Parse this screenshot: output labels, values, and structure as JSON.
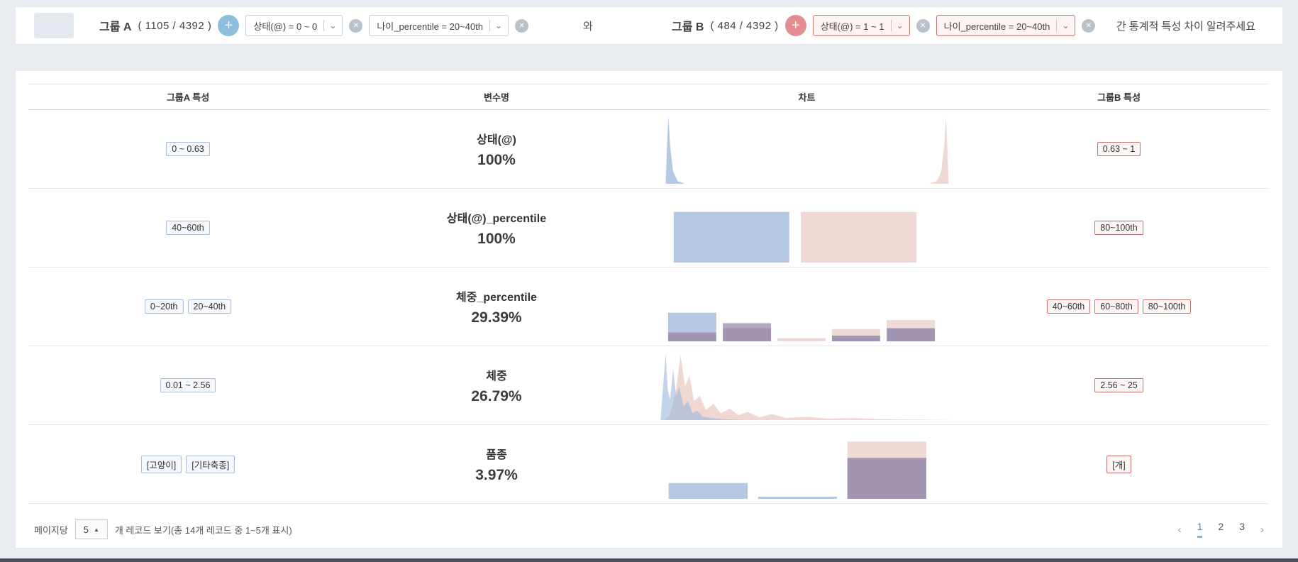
{
  "topbar": {
    "groupA": {
      "label": "그룹 A",
      "count": "( 1105 / 4392 )",
      "filters": [
        {
          "text": "상태(@) = 0 ~ 0"
        },
        {
          "text": "나이_percentile = 20~40th"
        }
      ]
    },
    "connector": "와",
    "groupB": {
      "label": "그룹 B",
      "count": "( 484 / 4392 )",
      "filters": [
        {
          "text": "상태(@) = 1 ~ 1"
        },
        {
          "text": "나이_percentile = 20~40th"
        }
      ]
    },
    "question": "간 통계적 특성 차이 알려주세요"
  },
  "icons": {
    "plus": "+",
    "close": "✕",
    "caret": "⌄",
    "selectArrow": "▲",
    "prev": "‹",
    "next": "›"
  },
  "table": {
    "headers": [
      "그룹A 특성",
      "변수명",
      "차트",
      "그룹B 특성"
    ],
    "rows": [
      {
        "groupA": [
          "0 ~ 0.63"
        ],
        "variable": "상태(@)",
        "percent": "100%",
        "groupB": [
          "0.63 ~ 1"
        ],
        "chart": {
          "type": "area",
          "opacity": 1,
          "series": [
            {
              "c": "blue",
              "pts": [
                [
                  0.025,
                  0
                ],
                [
                  0.03,
                  0.6
                ],
                [
                  0.034,
                  1
                ],
                [
                  0.04,
                  0.55
                ],
                [
                  0.05,
                  0.18
                ],
                [
                  0.065,
                  0.04
                ],
                [
                  0.09,
                  0
                ]
              ]
            },
            {
              "c": "pink",
              "pts": [
                [
                  0.91,
                  0
                ],
                [
                  0.935,
                  0.04
                ],
                [
                  0.95,
                  0.18
                ],
                [
                  0.96,
                  0.55
                ],
                [
                  0.966,
                  1
                ],
                [
                  0.97,
                  0.6
                ],
                [
                  0.975,
                  0
                ]
              ]
            }
          ]
        }
      },
      {
        "groupA": [
          "40~60th"
        ],
        "variable": "상태(@)_percentile",
        "percent": "100%",
        "groupB": [
          "80~100th"
        ],
        "chart": {
          "type": "bars",
          "bars": [
            {
              "x": 0.052,
              "w": 0.388,
              "seg": [
                [
                  "blue",
                  0.655
                ]
              ]
            },
            {
              "x": 0.479,
              "w": 0.388,
              "seg": [
                [
                  "pink",
                  0.655
                ]
              ]
            }
          ]
        }
      },
      {
        "groupA": [
          "0~20th",
          "20~40th"
        ],
        "variable": "체중_percentile",
        "percent": "29.39%",
        "groupB": [
          "40~60th",
          "60~80th",
          "80~100th"
        ],
        "chart": {
          "type": "bars",
          "bars": [
            {
              "x": 0.033,
              "w": 0.162,
              "seg": [
                [
                  "purple",
                  0.115
                ],
                [
                  "blue",
                  0.255
                ]
              ]
            },
            {
              "x": 0.217,
              "w": 0.162,
              "seg": [
                [
                  "purple",
                  0.17
                ],
                [
                  "mauve",
                  0.065
                ]
              ]
            },
            {
              "x": 0.4,
              "w": 0.162,
              "seg": [
                [
                  "pink",
                  0.04
                ]
              ]
            },
            {
              "x": 0.583,
              "w": 0.162,
              "seg": [
                [
                  "purple",
                  0.075
                ],
                [
                  "pink",
                  0.085
                ]
              ]
            },
            {
              "x": 0.767,
              "w": 0.162,
              "seg": [
                [
                  "purple",
                  0.17
                ],
                [
                  "pink",
                  0.105
                ]
              ]
            }
          ]
        }
      },
      {
        "groupA": [
          "0.01 ~ 2.56"
        ],
        "variable": "체중",
        "percent": "26.79%",
        "groupB": [
          "2.56 ~ 25"
        ],
        "chart": {
          "type": "area",
          "opacity": 0.62,
          "series": [
            {
              "c": "pinkD",
              "pts": [
                [
                  0.02,
                  0
                ],
                [
                  0.04,
                  0.08
                ],
                [
                  0.06,
                  0.45
                ],
                [
                  0.075,
                  0.95
                ],
                [
                  0.09,
                  0.5
                ],
                [
                  0.105,
                  0.65
                ],
                [
                  0.12,
                  0.28
                ],
                [
                  0.14,
                  0.35
                ],
                [
                  0.16,
                  0.15
                ],
                [
                  0.185,
                  0.24
                ],
                [
                  0.21,
                  0.1
                ],
                [
                  0.24,
                  0.17
                ],
                [
                  0.27,
                  0.07
                ],
                [
                  0.3,
                  0.12
                ],
                [
                  0.34,
                  0.04
                ],
                [
                  0.38,
                  0.09
                ],
                [
                  0.43,
                  0.03
                ],
                [
                  0.5,
                  0.05
                ],
                [
                  0.57,
                  0.02
                ],
                [
                  0.65,
                  0.03
                ],
                [
                  0.75,
                  0.012
                ],
                [
                  0.88,
                  0.006
                ],
                [
                  1,
                  0
                ]
              ]
            },
            {
              "c": "blueD",
              "pts": [
                [
                  0.008,
                  0
                ],
                [
                  0.018,
                  0.6
                ],
                [
                  0.025,
                  0.97
                ],
                [
                  0.032,
                  0.45
                ],
                [
                  0.04,
                  0.3
                ],
                [
                  0.05,
                  0.75
                ],
                [
                  0.06,
                  0.35
                ],
                [
                  0.07,
                  0.5
                ],
                [
                  0.085,
                  0.2
                ],
                [
                  0.1,
                  0.28
                ],
                [
                  0.115,
                  0.1
                ],
                [
                  0.13,
                  0.14
                ],
                [
                  0.15,
                  0.05
                ],
                [
                  0.18,
                  0.03
                ],
                [
                  0.22,
                  0.012
                ],
                [
                  0.3,
                  0
                ]
              ]
            }
          ]
        }
      },
      {
        "groupA": [
          "[고양이]",
          "[기타축종]"
        ],
        "variable": "품종",
        "percent": "3.97%",
        "groupB": [
          "[개]"
        ],
        "chart": {
          "type": "bars",
          "bars": [
            {
              "x": 0.035,
              "w": 0.265,
              "seg": [
                [
                  "blue",
                  0.205
                ]
              ]
            },
            {
              "x": 0.335,
              "w": 0.265,
              "seg": [
                [
                  "blue",
                  0.028
                ]
              ]
            },
            {
              "x": 0.635,
              "w": 0.265,
              "seg": [
                [
                  "purple",
                  0.53
                ],
                [
                  "pink",
                  0.21
                ]
              ]
            }
          ]
        }
      }
    ]
  },
  "footer": {
    "perPageLabel": "페이지당",
    "perPageValue": "5",
    "recordsLabel": "개 레코드 보기(총 14개 레코드 중 1~5개 표시)",
    "pages": [
      "1",
      "2",
      "3"
    ],
    "activePage": "1"
  },
  "colors": {
    "blue": "#b5c8e3",
    "pink": "#eed9d4",
    "purple": "#a295b4",
    "mauve": "#b3a7c2",
    "blueD": "#9db8dd",
    "pinkD": "#e8beb6",
    "accentBlue": "#8cbddc",
    "accentPink": "#e08e92",
    "badgeBlueBorder": "#a9bdd9",
    "badgeRedBorder": "#c4736c",
    "pageActive": "#4a88b8"
  }
}
